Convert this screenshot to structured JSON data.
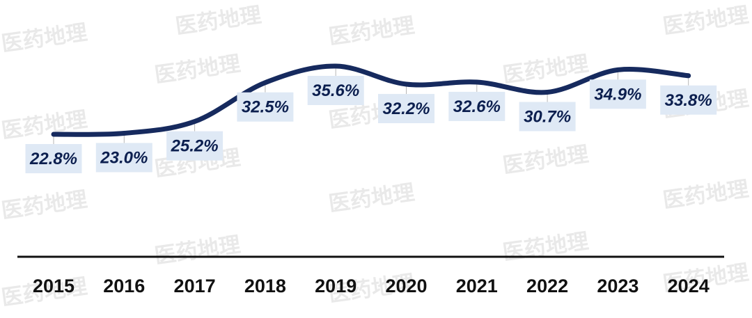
{
  "chart_data": {
    "type": "line",
    "title": "",
    "xlabel": "",
    "ylabel": "",
    "categories": [
      "2015",
      "2016",
      "2017",
      "2018",
      "2019",
      "2020",
      "2021",
      "2022",
      "2023",
      "2024"
    ],
    "series": [
      {
        "values": [
          22.8,
          23.0,
          25.2,
          32.5,
          35.6,
          32.2,
          32.6,
          30.7,
          34.9,
          33.8
        ],
        "labels": [
          "22.8%",
          "23.0%",
          "25.2%",
          "32.5%",
          "35.6%",
          "32.2%",
          "32.6%",
          "30.7%",
          "34.9%",
          "33.8%"
        ],
        "color": "#162a5e",
        "label_placement": [
          "below",
          "below",
          "below",
          "below",
          "below",
          "below",
          "below",
          "below",
          "below",
          "below"
        ]
      }
    ],
    "smooth": true,
    "ylim": [
      20,
      37
    ],
    "grid": false,
    "legend": "none",
    "show_y_axis": false,
    "axis_line_color": "#111111",
    "label_box_color": "#dfe9f5"
  },
  "watermark": {
    "text": "医药地理"
  }
}
